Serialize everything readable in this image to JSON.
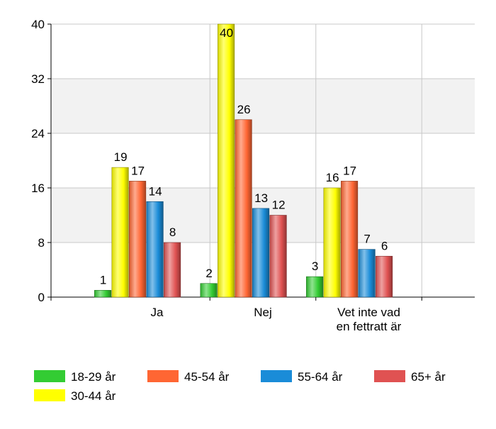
{
  "chart_data": {
    "type": "bar",
    "categories": [
      [
        "Ja"
      ],
      [
        "Nej"
      ],
      [
        "Vet inte vad",
        "en fettratt är"
      ]
    ],
    "series": [
      {
        "name": "18-29 år",
        "values": [
          1,
          2,
          3
        ],
        "color": "#33cc33"
      },
      {
        "name": "30-44 år",
        "values": [
          19,
          40,
          16
        ],
        "color": "#ffff00"
      },
      {
        "name": "45-54 år",
        "values": [
          17,
          26,
          17
        ],
        "color": "#ff6633"
      },
      {
        "name": "55-64 år",
        "values": [
          14,
          13,
          7
        ],
        "color": "#1a8cd8"
      },
      {
        "name": "65+ år",
        "values": [
          8,
          12,
          6
        ],
        "color": "#e05252"
      }
    ],
    "ylim": [
      0,
      40
    ],
    "yticks": [
      0,
      8,
      16,
      24,
      32,
      40
    ],
    "grid": true,
    "legend_position": "bottom",
    "title": "",
    "xlabel": "",
    "ylabel": ""
  }
}
